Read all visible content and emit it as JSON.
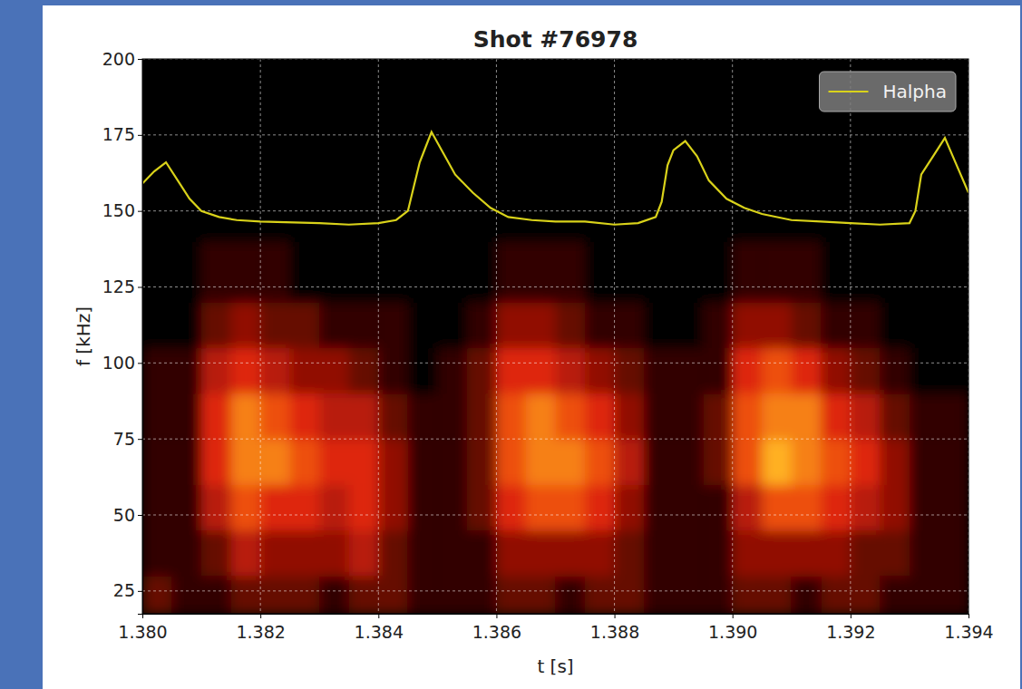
{
  "chart_data": {
    "type": "heatmap",
    "title": "Shot #76978",
    "x_label": "t [s]",
    "y_label": "f [kHz]",
    "xlim": [
      1.38,
      1.394
    ],
    "ylim": [
      17.5,
      200
    ],
    "xticks": [
      {
        "value": 1.38,
        "label": "1.380"
      },
      1.382,
      1.384,
      1.386,
      1.388,
      {
        "value": 1.39,
        "label": "1.390"
      },
      1.392,
      1.394
    ],
    "yticks": [
      25,
      50,
      75,
      100,
      125,
      150,
      175,
      200
    ],
    "grid": true,
    "legend": "upper right",
    "cells": {
      "x_edges": [
        1.38,
        1.3805,
        1.381,
        1.3815,
        1.382,
        1.3825,
        1.383,
        1.3835,
        1.384,
        1.3845,
        1.385,
        1.3855,
        1.386,
        1.3865,
        1.387,
        1.3875,
        1.388,
        1.3885,
        1.389,
        1.3895,
        1.39,
        1.3905,
        1.391,
        1.3915,
        1.392,
        1.3925,
        1.393,
        1.3935,
        1.394
      ],
      "y_edges": [
        17.5,
        30,
        45,
        60,
        75,
        90,
        105,
        120,
        140,
        160,
        180,
        200
      ],
      "values": [
        [
          2,
          1,
          1,
          2,
          2,
          2,
          1,
          2,
          2,
          1,
          1,
          1,
          2,
          2,
          1,
          2,
          2,
          1,
          1,
          1,
          2,
          2,
          1,
          2,
          2,
          1,
          1,
          1
        ],
        [
          1,
          1,
          2,
          4,
          3,
          3,
          3,
          4,
          2,
          1,
          1,
          1,
          3,
          3,
          3,
          3,
          2,
          1,
          1,
          1,
          3,
          3,
          3,
          3,
          2,
          2,
          1,
          1
        ],
        [
          1,
          1,
          4,
          6,
          5,
          5,
          4,
          5,
          3,
          1,
          1,
          2,
          5,
          6,
          6,
          5,
          3,
          1,
          1,
          1,
          4,
          6,
          6,
          5,
          4,
          3,
          1,
          1
        ],
        [
          1,
          1,
          5,
          7,
          7,
          6,
          5,
          5,
          3,
          1,
          1,
          2,
          6,
          7,
          7,
          6,
          4,
          1,
          1,
          2,
          6,
          8,
          7,
          6,
          5,
          3,
          1,
          1
        ],
        [
          1,
          1,
          5,
          7,
          6,
          5,
          4,
          4,
          2,
          1,
          1,
          2,
          6,
          7,
          6,
          5,
          3,
          1,
          1,
          2,
          6,
          7,
          7,
          5,
          4,
          2,
          1,
          1
        ],
        [
          1,
          1,
          4,
          5,
          4,
          3,
          3,
          2,
          1,
          0,
          1,
          2,
          5,
          5,
          4,
          3,
          2,
          1,
          1,
          1,
          5,
          6,
          5,
          3,
          2,
          1,
          0,
          0
        ],
        [
          0,
          0,
          2,
          3,
          2,
          2,
          1,
          1,
          1,
          0,
          0,
          1,
          3,
          3,
          2,
          1,
          1,
          0,
          0,
          1,
          3,
          3,
          2,
          1,
          1,
          0,
          0,
          0
        ],
        [
          0,
          0,
          1,
          1,
          1,
          0,
          0,
          0,
          0,
          0,
          0,
          0,
          1,
          1,
          1,
          0,
          0,
          0,
          0,
          0,
          1,
          1,
          1,
          0,
          0,
          0,
          0,
          0
        ],
        [
          0,
          0,
          0,
          0,
          0,
          0,
          0,
          0,
          0,
          0,
          0,
          0,
          0,
          0,
          0,
          0,
          0,
          0,
          0,
          0,
          0,
          0,
          0,
          0,
          0,
          0,
          0,
          0
        ],
        [
          0,
          0,
          0,
          0,
          0,
          0,
          0,
          0,
          0,
          0,
          0,
          0,
          0,
          0,
          0,
          0,
          0,
          0,
          0,
          0,
          0,
          0,
          0,
          0,
          0,
          0,
          0,
          0
        ],
        [
          0,
          0,
          0,
          0,
          0,
          0,
          0,
          0,
          0,
          0,
          0,
          0,
          0,
          0,
          0,
          0,
          0,
          0,
          0,
          0,
          0,
          0,
          0,
          0,
          0,
          0,
          0,
          0
        ]
      ]
    },
    "series": [
      {
        "name": "Halpha",
        "type": "line",
        "color": "#d9d21a",
        "x": [
          1.38,
          1.3802,
          1.3804,
          1.3806,
          1.3808,
          1.381,
          1.3813,
          1.3816,
          1.382,
          1.383,
          1.3835,
          1.384,
          1.3843,
          1.3845,
          1.3846,
          1.3847,
          1.3848,
          1.3849,
          1.3851,
          1.3853,
          1.3856,
          1.3859,
          1.3862,
          1.3866,
          1.387,
          1.3875,
          1.388,
          1.3884,
          1.3887,
          1.3888,
          1.3889,
          1.389,
          1.3892,
          1.3894,
          1.3896,
          1.3899,
          1.3902,
          1.3905,
          1.391,
          1.3915,
          1.392,
          1.3925,
          1.393,
          1.3931,
          1.3932,
          1.3934,
          1.3936,
          1.3938,
          1.394
        ],
        "values": [
          159,
          163,
          166,
          160,
          154,
          150,
          148,
          147,
          146.5,
          146,
          145.5,
          146,
          147,
          150,
          158,
          166,
          171,
          176,
          169,
          162,
          156,
          151,
          148,
          147,
          146.5,
          146.5,
          145.5,
          146,
          148,
          153,
          165,
          170,
          173,
          168,
          160,
          154,
          151,
          149,
          147,
          146.5,
          146,
          145.5,
          146,
          150,
          162,
          168,
          174,
          165,
          156
        ]
      }
    ]
  }
}
